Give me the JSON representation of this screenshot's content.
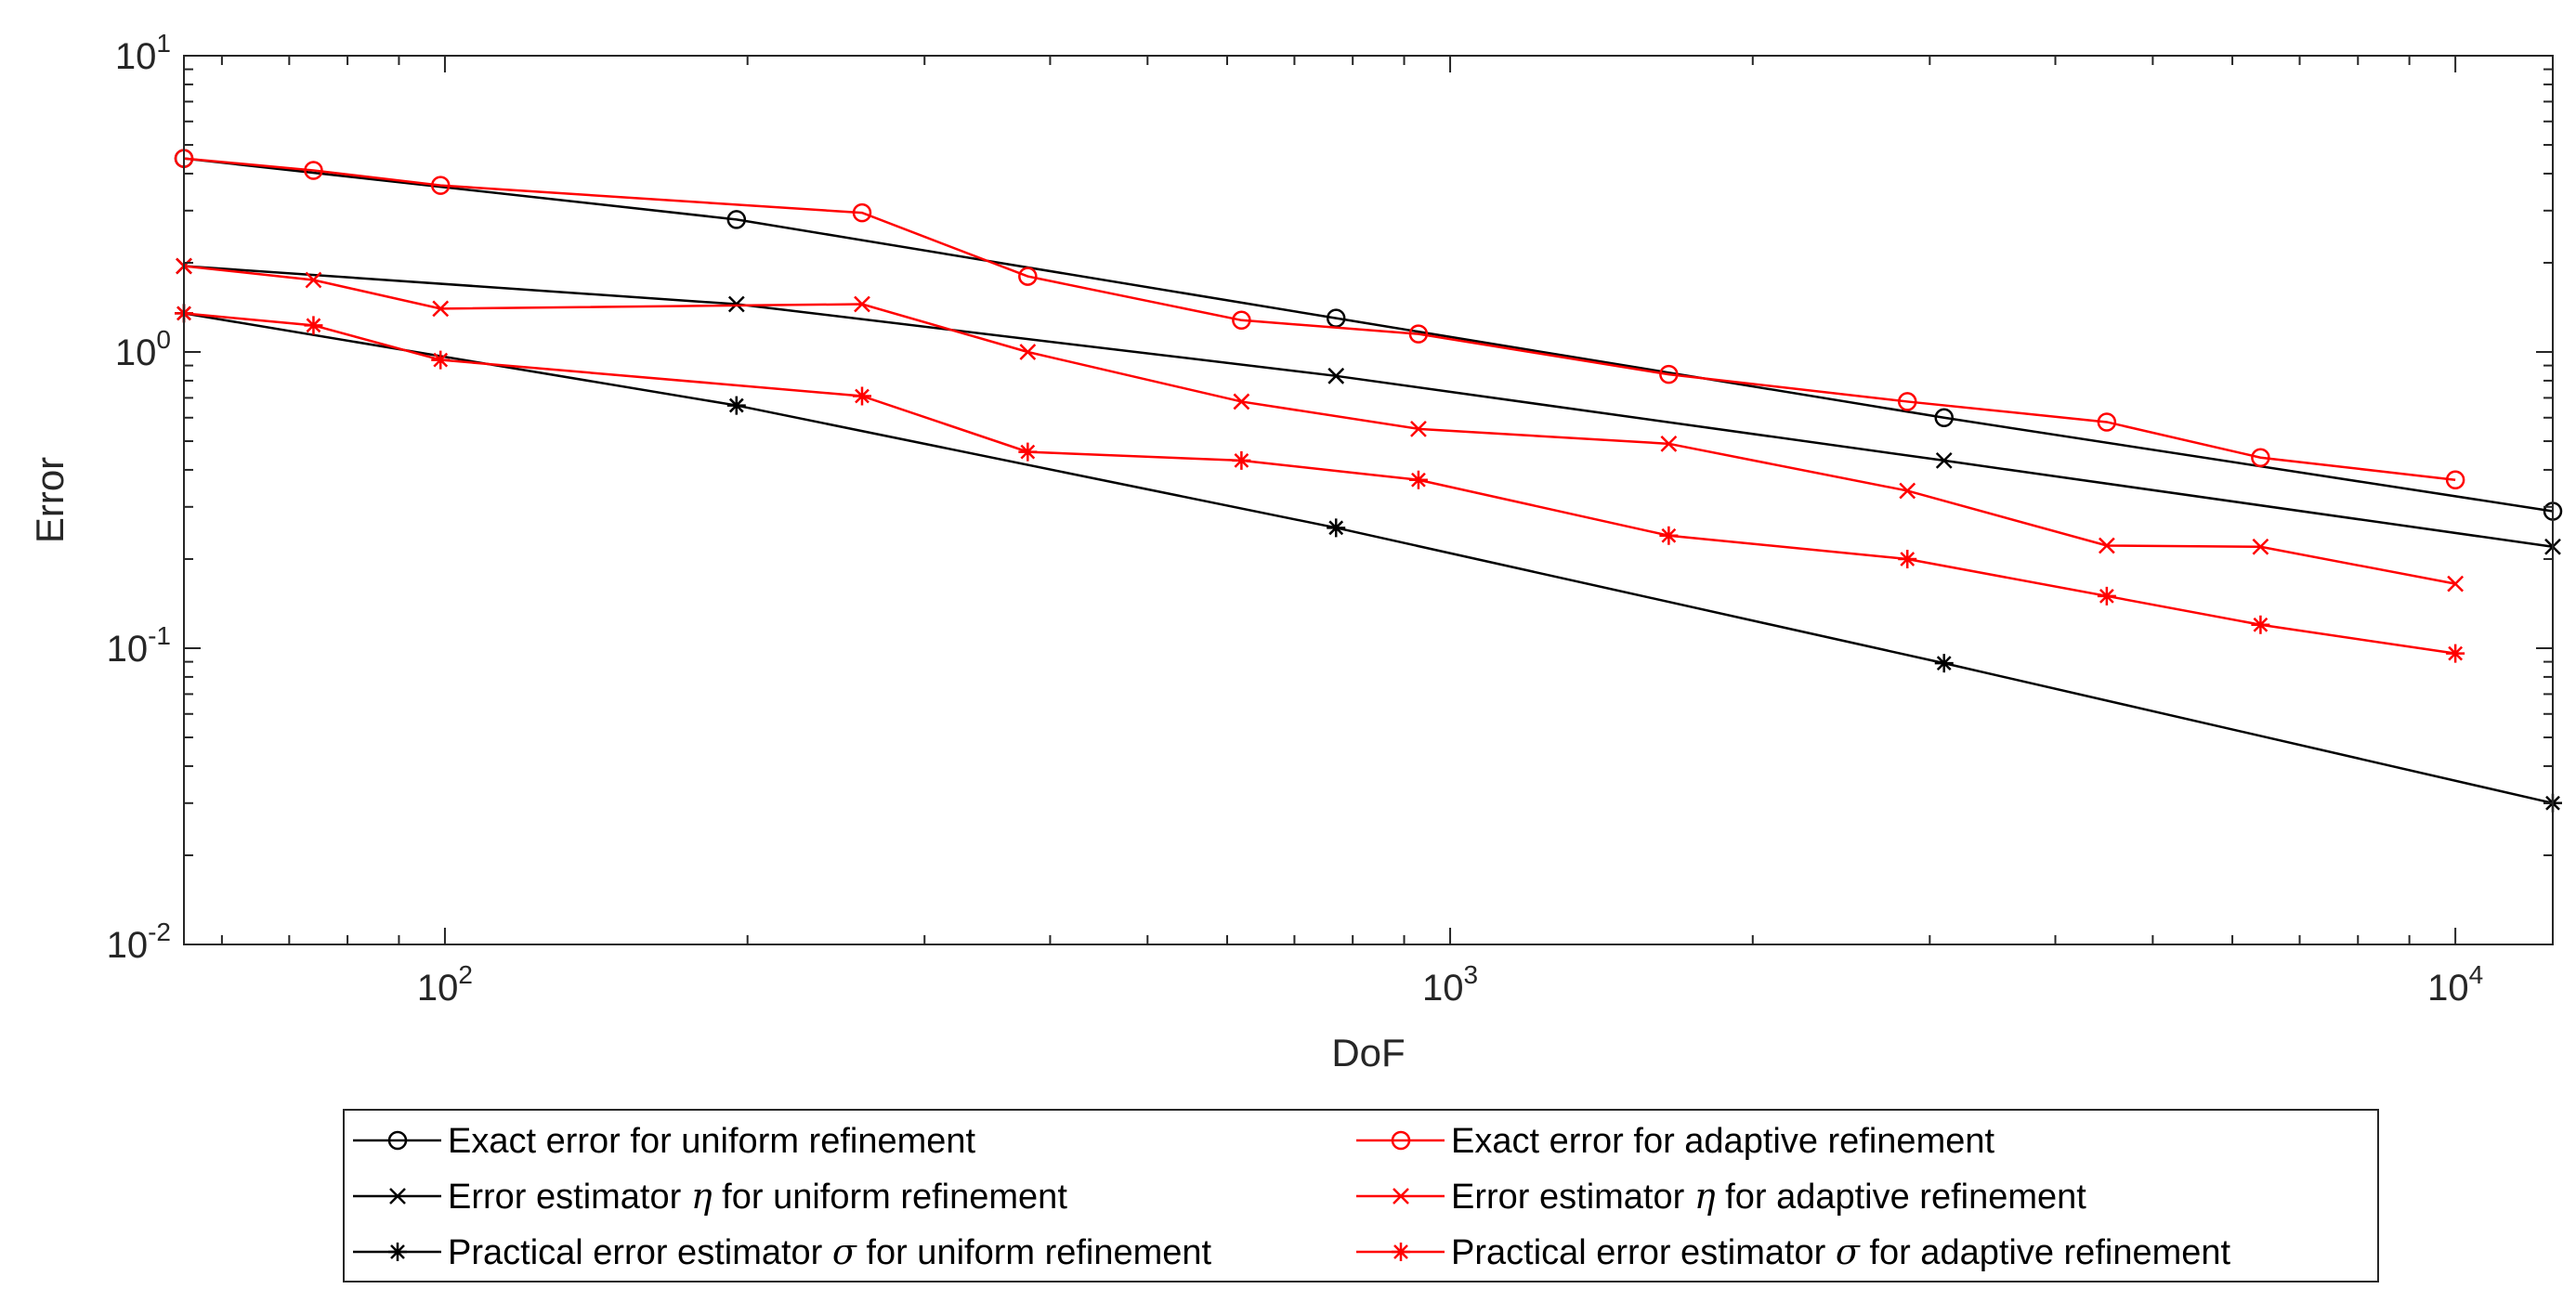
{
  "chart_data": {
    "type": "line",
    "title": "",
    "xlabel": "DoF",
    "ylabel": "Error",
    "xscale": "log",
    "yscale": "log",
    "xlim": [
      55,
      12500
    ],
    "ylim": [
      0.01,
      10
    ],
    "grid": false,
    "legend_location": "bottom-outside",
    "x_ticks": [
      {
        "value": 100,
        "base": "10",
        "exp": "2"
      },
      {
        "value": 1000,
        "base": "10",
        "exp": "3"
      },
      {
        "value": 10000,
        "base": "10",
        "exp": "4"
      }
    ],
    "y_ticks": [
      {
        "value": 0.01,
        "base": "10",
        "exp": "-2"
      },
      {
        "value": 0.1,
        "base": "10",
        "exp": "-1"
      },
      {
        "value": 1,
        "base": "10",
        "exp": "0"
      },
      {
        "value": 10,
        "base": "10",
        "exp": "1"
      }
    ],
    "series": [
      {
        "name": "Exact error for uniform refinement",
        "legend_prefix": "Exact error for uniform refinement",
        "legend_symbol": "",
        "legend_suffix": "",
        "color": "#000000",
        "marker": "circle",
        "x": [
          55,
          195,
          770,
          3100,
          12500
        ],
        "y": [
          4.5,
          2.8,
          1.3,
          0.6,
          0.29
        ]
      },
      {
        "name": "Error estimator η for uniform refinement",
        "legend_prefix": "Error estimator ",
        "legend_symbol": "η",
        "legend_suffix": " for uniform refinement",
        "color": "#000000",
        "marker": "x",
        "x": [
          55,
          195,
          770,
          3100,
          12500
        ],
        "y": [
          1.95,
          1.45,
          0.83,
          0.43,
          0.22
        ]
      },
      {
        "name": "Practical error estimator σ for uniform refinement",
        "legend_prefix": "Practical error estimator ",
        "legend_symbol": "σ",
        "legend_suffix": " for uniform refinement",
        "color": "#000000",
        "marker": "star",
        "x": [
          55,
          195,
          770,
          3100,
          12500
        ],
        "y": [
          1.35,
          0.66,
          0.255,
          0.089,
          0.03
        ]
      },
      {
        "name": "Exact error for adaptive refinement",
        "legend_prefix": "Exact error for adaptive refinement",
        "legend_symbol": "",
        "legend_suffix": "",
        "color": "#ff0000",
        "marker": "circle",
        "x": [
          55,
          74,
          99,
          260,
          380,
          620,
          930,
          1650,
          2850,
          4500,
          6400,
          10000
        ],
        "y": [
          4.5,
          4.1,
          3.65,
          2.95,
          1.8,
          1.28,
          1.15,
          0.84,
          0.68,
          0.58,
          0.44,
          0.37
        ]
      },
      {
        "name": "Error estimator η for adaptive refinement",
        "legend_prefix": "Error estimator ",
        "legend_symbol": "η",
        "legend_suffix": " for adaptive refinement",
        "color": "#ff0000",
        "marker": "x",
        "x": [
          55,
          74,
          99,
          260,
          380,
          620,
          930,
          1650,
          2850,
          4500,
          6400,
          10000
        ],
        "y": [
          1.95,
          1.75,
          1.4,
          1.45,
          1.0,
          0.68,
          0.55,
          0.49,
          0.34,
          0.222,
          0.22,
          0.165
        ]
      },
      {
        "name": "Practical error estimator σ for adaptive refinement",
        "legend_prefix": "Practical error estimator ",
        "legend_symbol": "σ",
        "legend_suffix": " for adaptive refinement",
        "color": "#ff0000",
        "marker": "star",
        "x": [
          55,
          74,
          99,
          260,
          380,
          620,
          930,
          1650,
          2850,
          4500,
          6400,
          10000
        ],
        "y": [
          1.35,
          1.23,
          0.94,
          0.71,
          0.46,
          0.43,
          0.37,
          0.24,
          0.2,
          0.15,
          0.12,
          0.096
        ]
      }
    ]
  }
}
